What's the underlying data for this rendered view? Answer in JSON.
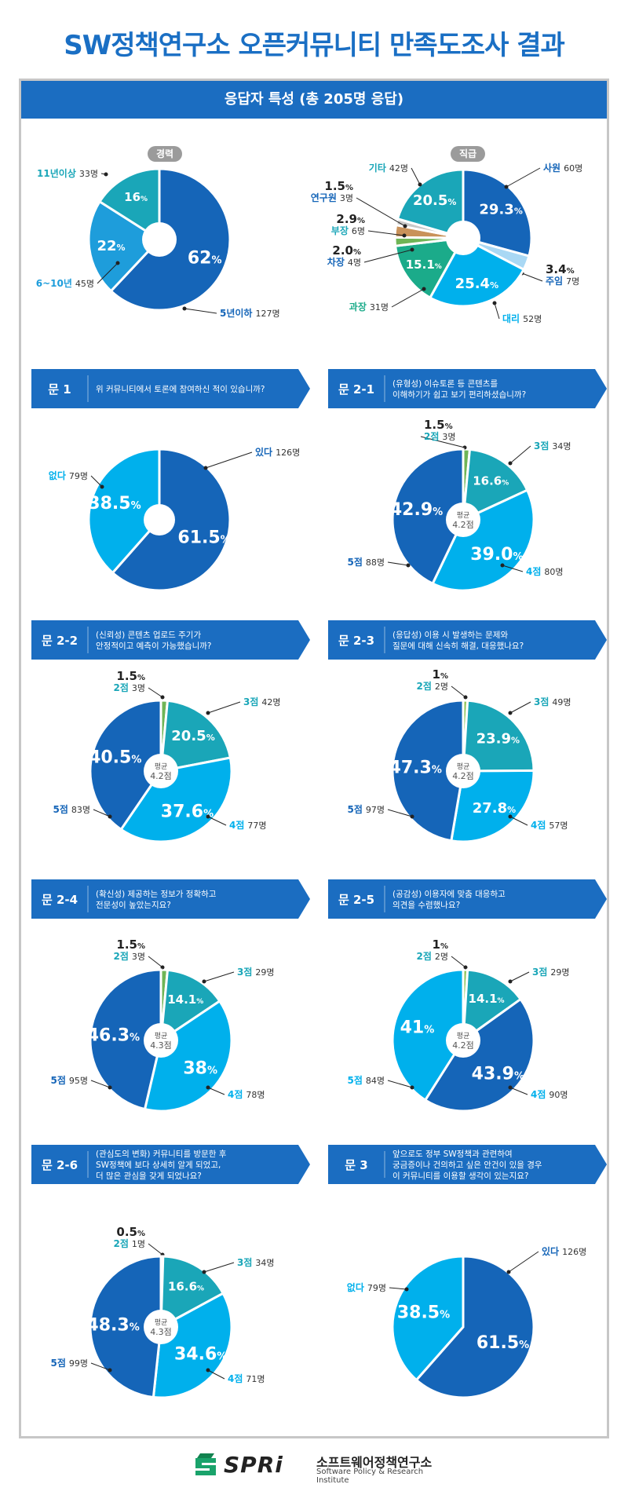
{
  "header": {
    "title": "SW정책연구소 오픈커뮤니티 만족도조사 결과"
  },
  "section": {
    "title": "응답자 특성 (총 205명 응답)"
  },
  "colors": {
    "dark": "#1565b8",
    "mid": "#1e9ddb",
    "light": "#00b0ec",
    "teal": "#1aa6b8",
    "green": "#1bab8a",
    "brown": "#c9925a",
    "olive": "#6fb556",
    "lightgreen": "#8fc45a",
    "lightblue": "#a9d8f4",
    "gray": "#c8c8c8"
  },
  "charts": [
    {
      "id": "career",
      "title": "경력",
      "kind": "donut",
      "slices": [
        {
          "label": "5년이하",
          "count": "127명",
          "pct": "62",
          "value": 62,
          "color": "#1565b8"
        },
        {
          "label": "6~10년",
          "count": "45명",
          "pct": "22",
          "value": 22,
          "color": "#1e9ddb"
        },
        {
          "label": "11년이상",
          "count": "33명",
          "pct": "16",
          "value": 16,
          "color": "#1aa6b8"
        }
      ]
    },
    {
      "id": "position",
      "title": "직급",
      "kind": "donut",
      "slices": [
        {
          "label": "사원",
          "count": "60명",
          "pct": "29.3",
          "value": 29.3,
          "color": "#1565b8"
        },
        {
          "label": "주임",
          "count": "7명",
          "pct": "3.4",
          "value": 3.4,
          "color": "#a9d8f4"
        },
        {
          "label": "대리",
          "count": "52명",
          "pct": "25.4",
          "value": 25.4,
          "color": "#00b0ec"
        },
        {
          "label": "과장",
          "count": "31명",
          "pct": "15.1",
          "value": 15.1,
          "color": "#1bab8a"
        },
        {
          "label": "차장",
          "count": "4명",
          "pct": "2.0",
          "value": 2.0,
          "color": "#6fb556"
        },
        {
          "label": "부장",
          "count": "6명",
          "pct": "2.9",
          "value": 2.9,
          "color": "#c9925a"
        },
        {
          "label": "연구원",
          "count": "3명",
          "pct": "1.5",
          "value": 1.5,
          "color": "#c8c8c8"
        },
        {
          "label": "기타",
          "count": "42명",
          "pct": "20.5",
          "value": 20.5,
          "color": "#1aa6b8"
        }
      ]
    },
    {
      "id": "q1",
      "num": "문 1",
      "question": [
        "위 커뮤니티에서 토론에 참여하신 적이 있습니까?"
      ],
      "kind": "donut",
      "slices": [
        {
          "label": "있다",
          "count": "126명",
          "pct": "61.5",
          "value": 61.5,
          "color": "#1565b8"
        },
        {
          "label": "없다",
          "count": "79명",
          "pct": "38.5",
          "value": 38.5,
          "color": "#00b0ec"
        }
      ]
    },
    {
      "id": "q2-1",
      "num": "문 2-1",
      "question": [
        "(유형성) 이슈토론 등 콘텐츠를",
        "이해하기가 쉽고 보기 편리하셨습니까?"
      ],
      "kind": "pie",
      "center": [
        "평균",
        "4.2점"
      ],
      "slices": [
        {
          "label": "2점",
          "count": "3명",
          "pct": "1.5",
          "value": 1.5,
          "color": "#6fb556"
        },
        {
          "label": "3점",
          "count": "34명",
          "pct": "16.6",
          "value": 16.6,
          "color": "#1aa6b8"
        },
        {
          "label": "4점",
          "count": "80명",
          "pct": "39.0",
          "value": 39.0,
          "color": "#00b0ec"
        },
        {
          "label": "5점",
          "count": "88명",
          "pct": "42.9",
          "value": 42.9,
          "color": "#1565b8"
        }
      ]
    },
    {
      "id": "q2-2",
      "num": "문 2-2",
      "question": [
        "(신뢰성) 콘텐츠 업로드 주기가",
        "안정적이고 예측이 가능했습니까?"
      ],
      "kind": "pie",
      "center": [
        "평균",
        "4.2점"
      ],
      "slices": [
        {
          "label": "2점",
          "count": "3명",
          "pct": "1.5",
          "value": 1.5,
          "color": "#6fb556"
        },
        {
          "label": "3점",
          "count": "42명",
          "pct": "20.5",
          "value": 20.5,
          "color": "#1aa6b8"
        },
        {
          "label": "4점",
          "count": "77명",
          "pct": "37.6",
          "value": 37.6,
          "color": "#00b0ec"
        },
        {
          "label": "5점",
          "count": "83명",
          "pct": "40.5",
          "value": 40.5,
          "color": "#1565b8"
        }
      ]
    },
    {
      "id": "q2-3",
      "num": "문 2-3",
      "question": [
        "(응답성) 이용 시 발생하는 문제와",
        "질문에 대해 신속히 해결, 대응했나요?"
      ],
      "kind": "pie",
      "center": [
        "평균",
        "4.2점"
      ],
      "slices": [
        {
          "label": "2점",
          "count": "2명",
          "pct": "1",
          "value": 1,
          "color": "#8fc45a"
        },
        {
          "label": "3점",
          "count": "49명",
          "pct": "23.9",
          "value": 23.9,
          "color": "#1aa6b8"
        },
        {
          "label": "4점",
          "count": "57명",
          "pct": "27.8",
          "value": 27.8,
          "color": "#00b0ec"
        },
        {
          "label": "5점",
          "count": "97명",
          "pct": "47.3",
          "value": 47.3,
          "color": "#1565b8"
        }
      ]
    },
    {
      "id": "q2-4",
      "num": "문 2-4",
      "question": [
        "(확신성) 제공하는 정보가 정확하고",
        "전문성이 높았는지요?"
      ],
      "kind": "pie",
      "center": [
        "평균",
        "4.3점"
      ],
      "slices": [
        {
          "label": "2점",
          "count": "3명",
          "pct": "1.5",
          "value": 1.5,
          "color": "#6fb556"
        },
        {
          "label": "3점",
          "count": "29명",
          "pct": "14.1",
          "value": 14.1,
          "color": "#1aa6b8"
        },
        {
          "label": "4점",
          "count": "78명",
          "pct": "38",
          "value": 38,
          "color": "#00b0ec"
        },
        {
          "label": "5점",
          "count": "95명",
          "pct": "46.3",
          "value": 46.3,
          "color": "#1565b8"
        }
      ]
    },
    {
      "id": "q2-5",
      "num": "문 2-5",
      "question": [
        "(공감성) 이용자에 맞춤 대응하고",
        "의견을 수렴했나요?"
      ],
      "kind": "pie",
      "center": [
        "평균",
        "4.2점"
      ],
      "slices": [
        {
          "label": "2점",
          "count": "2명",
          "pct": "1",
          "value": 1,
          "color": "#8fc45a"
        },
        {
          "label": "3점",
          "count": "29명",
          "pct": "14.1",
          "value": 14.1,
          "color": "#1aa6b8"
        },
        {
          "label": "4점",
          "count": "90명",
          "pct": "43.9",
          "value": 43.9,
          "color": "#1565b8"
        },
        {
          "label": "5점",
          "count": "84명",
          "pct": "41",
          "value": 41,
          "color": "#00b0ec"
        }
      ]
    },
    {
      "id": "q2-6",
      "num": "문 2-6",
      "question": [
        "(관심도의 변화) 커뮤니티를 방문한 후",
        "SW정책에 보다 상세히 알게 되었고,",
        "더 많은 관심을 갖게 되었나요?"
      ],
      "kind": "pie",
      "center": [
        "평균",
        "4.3점"
      ],
      "slices": [
        {
          "label": "2점",
          "count": "1명",
          "pct": "0.5",
          "value": 0.5,
          "color": "#6fb556"
        },
        {
          "label": "3점",
          "count": "34명",
          "pct": "16.6",
          "value": 16.6,
          "color": "#1aa6b8"
        },
        {
          "label": "4점",
          "count": "71명",
          "pct": "34.6",
          "value": 34.6,
          "color": "#00b0ec"
        },
        {
          "label": "5점",
          "count": "99명",
          "pct": "48.3",
          "value": 48.3,
          "color": "#1565b8"
        }
      ]
    },
    {
      "id": "q3",
      "num": "문 3",
      "question": [
        "앞으로도 정부 SW정책과 관련하여",
        "궁금증이나 건의하고 싶은 안건이 있을 경우",
        "이 커뮤니티를 이용할 생각이 있는지요?"
      ],
      "kind": "donut",
      "slices": [
        {
          "label": "있다",
          "count": "126명",
          "pct": "61.5",
          "value": 61.5,
          "color": "#1565b8"
        },
        {
          "label": "없다",
          "count": "79명",
          "pct": "38.5",
          "value": 38.5,
          "color": "#00b0ec"
        }
      ]
    }
  ],
  "chart_data": [
    {
      "type": "pie",
      "title": "경력",
      "categories": [
        "5년이하",
        "6~10년",
        "11년이상"
      ],
      "values": [
        62,
        22,
        16
      ],
      "counts": [
        127,
        45,
        33
      ]
    },
    {
      "type": "pie",
      "title": "직급",
      "categories": [
        "사원",
        "주임",
        "대리",
        "과장",
        "차장",
        "부장",
        "연구원",
        "기타"
      ],
      "values": [
        29.3,
        3.4,
        25.4,
        15.1,
        2.0,
        2.9,
        1.5,
        20.5
      ],
      "counts": [
        60,
        7,
        52,
        31,
        4,
        6,
        3,
        42
      ]
    },
    {
      "type": "pie",
      "title": "문 1",
      "categories": [
        "있다",
        "없다"
      ],
      "values": [
        61.5,
        38.5
      ],
      "counts": [
        126,
        79
      ]
    },
    {
      "type": "pie",
      "title": "문 2-1",
      "categories": [
        "2점",
        "3점",
        "4점",
        "5점"
      ],
      "values": [
        1.5,
        16.6,
        39.0,
        42.9
      ],
      "counts": [
        3,
        34,
        80,
        88
      ]
    },
    {
      "type": "pie",
      "title": "문 2-2",
      "categories": [
        "2점",
        "3점",
        "4점",
        "5점"
      ],
      "values": [
        1.5,
        20.5,
        37.6,
        40.5
      ],
      "counts": [
        3,
        42,
        77,
        83
      ]
    },
    {
      "type": "pie",
      "title": "문 2-3",
      "categories": [
        "2점",
        "3점",
        "4점",
        "5점"
      ],
      "values": [
        1,
        23.9,
        27.8,
        47.3
      ],
      "counts": [
        2,
        49,
        57,
        97
      ]
    },
    {
      "type": "pie",
      "title": "문 2-4",
      "categories": [
        "2점",
        "3점",
        "4점",
        "5점"
      ],
      "values": [
        1.5,
        14.1,
        38,
        46.3
      ],
      "counts": [
        3,
        29,
        78,
        95
      ]
    },
    {
      "type": "pie",
      "title": "문 2-5",
      "categories": [
        "2점",
        "3점",
        "4점",
        "5점"
      ],
      "values": [
        1,
        14.1,
        43.9,
        41
      ],
      "counts": [
        2,
        29,
        90,
        84
      ]
    },
    {
      "type": "pie",
      "title": "문 2-6",
      "categories": [
        "2점",
        "3점",
        "4점",
        "5점"
      ],
      "values": [
        0.5,
        16.6,
        34.6,
        48.3
      ],
      "counts": [
        1,
        34,
        71,
        99
      ]
    },
    {
      "type": "pie",
      "title": "문 3",
      "categories": [
        "있다",
        "없다"
      ],
      "values": [
        61.5,
        38.5
      ],
      "counts": [
        126,
        79
      ]
    }
  ],
  "footer": {
    "logo_text": "SPRi",
    "org_kr": "소프트웨어정책연구소",
    "org_en": "Software Policy & Research Institute"
  }
}
